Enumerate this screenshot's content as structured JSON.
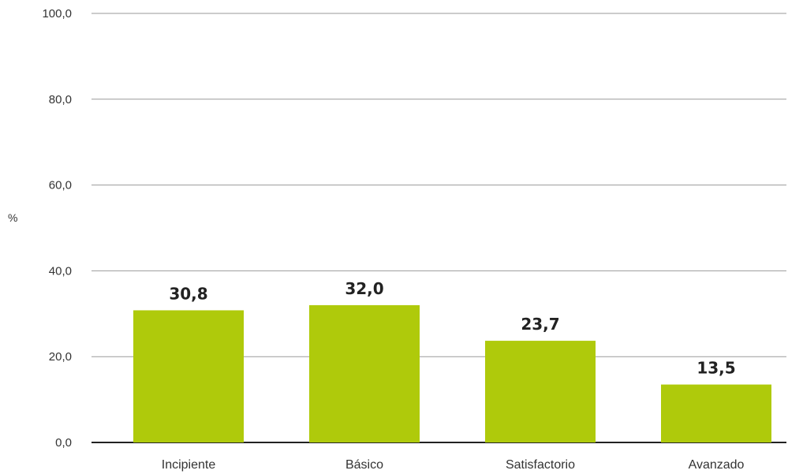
{
  "chart_data": {
    "type": "bar",
    "categories": [
      "Incipiente",
      "Básico",
      "Satisfactorio",
      "Avanzado"
    ],
    "values": [
      30.8,
      32.0,
      23.7,
      13.5
    ],
    "value_labels": [
      "30,8",
      "32,0",
      "23,7",
      "13,5"
    ],
    "yticks": [
      0,
      20,
      40,
      60,
      80,
      100
    ],
    "ytick_labels": [
      "0,0",
      "20,0",
      "40,0",
      "60,0",
      "80,0",
      "100,0"
    ],
    "ylabel": "%",
    "xlabel": "",
    "title": "",
    "ylim": [
      0,
      100
    ],
    "grid": true,
    "legend": "none",
    "colors": {
      "bar": "#afca0b",
      "grid": "#9a9a9a",
      "baseline": "#222222"
    }
  }
}
